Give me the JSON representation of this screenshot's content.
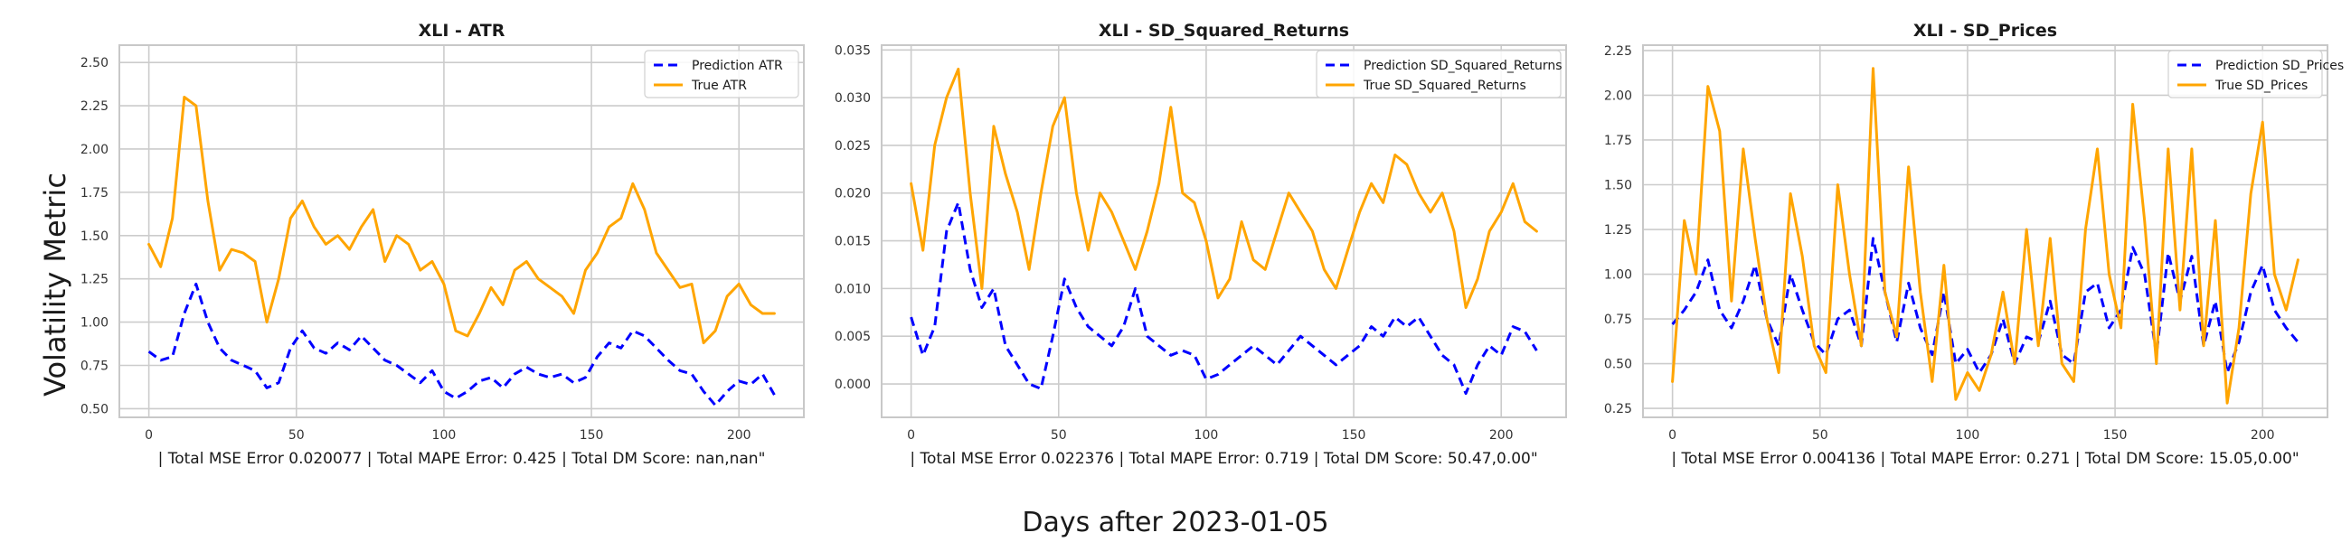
{
  "figure": {
    "ylabel": "Volatility Metric",
    "xlabel": "Days after 2023-01-05"
  },
  "colors": {
    "prediction": "#0000ff",
    "true": "#ffa500",
    "grid": "#cccccc",
    "frame": "#c8c8c8"
  },
  "chart_data": [
    {
      "type": "line",
      "title": "XLI - ATR",
      "xlabel": "| Total MSE Error 0.020077 | Total MAPE Error: 0.425 | Total DM Score: nan,nan\"",
      "ylabel": "",
      "xlim": [
        -10,
        222
      ],
      "ylim": [
        0.45,
        2.6
      ],
      "xticks": [
        0,
        50,
        100,
        150,
        200
      ],
      "yticks": [
        0.5,
        0.75,
        1.0,
        1.25,
        1.5,
        1.75,
        2.0,
        2.25,
        2.5
      ],
      "yticklabels": [
        "0.50",
        "0.75",
        "1.00",
        "1.25",
        "1.50",
        "1.75",
        "2.00",
        "2.25",
        "2.50"
      ],
      "legend": "top-right",
      "series": [
        {
          "name": "Prediction ATR",
          "style": "dashed",
          "color": "#0000ff",
          "x": [
            0,
            4,
            8,
            12,
            16,
            20,
            24,
            28,
            32,
            36,
            40,
            44,
            48,
            52,
            56,
            60,
            64,
            68,
            72,
            76,
            80,
            84,
            88,
            92,
            96,
            100,
            104,
            108,
            112,
            116,
            120,
            124,
            128,
            132,
            136,
            140,
            144,
            148,
            152,
            156,
            160,
            164,
            168,
            172,
            176,
            180,
            184,
            188,
            192,
            196,
            200,
            204,
            208,
            212
          ],
          "y": [
            0.83,
            0.78,
            0.8,
            1.05,
            1.22,
            1.0,
            0.85,
            0.78,
            0.75,
            0.72,
            0.62,
            0.65,
            0.85,
            0.95,
            0.85,
            0.82,
            0.88,
            0.84,
            0.92,
            0.85,
            0.78,
            0.75,
            0.7,
            0.65,
            0.72,
            0.6,
            0.56,
            0.6,
            0.66,
            0.68,
            0.62,
            0.7,
            0.74,
            0.7,
            0.68,
            0.7,
            0.65,
            0.68,
            0.8,
            0.88,
            0.85,
            0.95,
            0.92,
            0.85,
            0.78,
            0.72,
            0.7,
            0.6,
            0.52,
            0.6,
            0.66,
            0.64,
            0.7,
            0.58
          ]
        },
        {
          "name": "True ATR",
          "style": "solid",
          "color": "#ffa500",
          "x": [
            0,
            4,
            8,
            12,
            16,
            20,
            24,
            28,
            32,
            36,
            40,
            44,
            48,
            52,
            56,
            60,
            64,
            68,
            72,
            76,
            80,
            84,
            88,
            92,
            96,
            100,
            104,
            108,
            112,
            116,
            120,
            124,
            128,
            132,
            136,
            140,
            144,
            148,
            152,
            156,
            160,
            164,
            168,
            172,
            176,
            180,
            184,
            188,
            192,
            196,
            200,
            204,
            208,
            212
          ],
          "y": [
            1.45,
            1.32,
            1.6,
            2.3,
            2.25,
            1.7,
            1.3,
            1.42,
            1.4,
            1.35,
            1.0,
            1.25,
            1.6,
            1.7,
            1.55,
            1.45,
            1.5,
            1.42,
            1.55,
            1.65,
            1.35,
            1.5,
            1.45,
            1.3,
            1.35,
            1.22,
            0.95,
            0.92,
            1.05,
            1.2,
            1.1,
            1.3,
            1.35,
            1.25,
            1.2,
            1.15,
            1.05,
            1.3,
            1.4,
            1.55,
            1.6,
            1.8,
            1.65,
            1.4,
            1.3,
            1.2,
            1.22,
            0.88,
            0.95,
            1.15,
            1.22,
            1.1,
            1.05,
            1.05
          ]
        }
      ]
    },
    {
      "type": "line",
      "title": "XLI - SD_Squared_Returns",
      "xlabel": "| Total MSE Error 0.022376 | Total MAPE Error: 0.719 | Total DM Score: 50.47,0.00\"",
      "ylabel": "",
      "xlim": [
        -10,
        222
      ],
      "ylim": [
        -0.0035,
        0.0355
      ],
      "xticks": [
        0,
        50,
        100,
        150,
        200
      ],
      "yticks": [
        0.0,
        0.005,
        0.01,
        0.015,
        0.02,
        0.025,
        0.03,
        0.035
      ],
      "yticklabels": [
        "0.000",
        "0.005",
        "0.010",
        "0.015",
        "0.020",
        "0.025",
        "0.030",
        "0.035"
      ],
      "legend": "top-right",
      "series": [
        {
          "name": "Prediction SD_Squared_Returns",
          "style": "dashed",
          "color": "#0000ff",
          "x": [
            0,
            4,
            8,
            12,
            16,
            20,
            24,
            28,
            32,
            36,
            40,
            44,
            48,
            52,
            56,
            60,
            64,
            68,
            72,
            76,
            80,
            84,
            88,
            92,
            96,
            100,
            104,
            108,
            112,
            116,
            120,
            124,
            128,
            132,
            136,
            140,
            144,
            148,
            152,
            156,
            160,
            164,
            168,
            172,
            176,
            180,
            184,
            188,
            192,
            196,
            200,
            204,
            208,
            212
          ],
          "y": [
            0.007,
            0.003,
            0.006,
            0.016,
            0.019,
            0.012,
            0.008,
            0.01,
            0.004,
            0.002,
            0.0,
            -0.0005,
            0.005,
            0.011,
            0.008,
            0.006,
            0.005,
            0.004,
            0.006,
            0.01,
            0.005,
            0.004,
            0.003,
            0.0035,
            0.003,
            0.0005,
            0.001,
            0.002,
            0.003,
            0.004,
            0.003,
            0.002,
            0.0035,
            0.005,
            0.004,
            0.003,
            0.002,
            0.003,
            0.004,
            0.006,
            0.005,
            0.007,
            0.006,
            0.007,
            0.005,
            0.003,
            0.002,
            -0.001,
            0.002,
            0.004,
            0.003,
            0.006,
            0.0055,
            0.0035
          ]
        },
        {
          "name": "True SD_Squared_Returns",
          "style": "solid",
          "color": "#ffa500",
          "x": [
            0,
            4,
            8,
            12,
            16,
            20,
            24,
            28,
            32,
            36,
            40,
            44,
            48,
            52,
            56,
            60,
            64,
            68,
            72,
            76,
            80,
            84,
            88,
            92,
            96,
            100,
            104,
            108,
            112,
            116,
            120,
            124,
            128,
            132,
            136,
            140,
            144,
            148,
            152,
            156,
            160,
            164,
            168,
            172,
            176,
            180,
            184,
            188,
            192,
            196,
            200,
            204,
            208,
            212
          ],
          "y": [
            0.021,
            0.014,
            0.025,
            0.03,
            0.033,
            0.02,
            0.01,
            0.027,
            0.022,
            0.018,
            0.012,
            0.02,
            0.027,
            0.03,
            0.02,
            0.014,
            0.02,
            0.018,
            0.015,
            0.012,
            0.016,
            0.021,
            0.029,
            0.02,
            0.019,
            0.015,
            0.009,
            0.011,
            0.017,
            0.013,
            0.012,
            0.016,
            0.02,
            0.018,
            0.016,
            0.012,
            0.01,
            0.014,
            0.018,
            0.021,
            0.019,
            0.024,
            0.023,
            0.02,
            0.018,
            0.02,
            0.016,
            0.008,
            0.011,
            0.016,
            0.018,
            0.021,
            0.017,
            0.016
          ]
        }
      ]
    },
    {
      "type": "line",
      "title": "XLI - SD_Prices",
      "xlabel": "| Total MSE Error 0.004136 | Total MAPE Error: 0.271 | Total DM Score: 15.05,0.00\"",
      "ylabel": "",
      "xlim": [
        -10,
        222
      ],
      "ylim": [
        0.2,
        2.28
      ],
      "xticks": [
        0,
        50,
        100,
        150,
        200
      ],
      "yticks": [
        0.25,
        0.5,
        0.75,
        1.0,
        1.25,
        1.5,
        1.75,
        2.0,
        2.25
      ],
      "yticklabels": [
        "0.25",
        "0.50",
        "0.75",
        "1.00",
        "1.25",
        "1.50",
        "1.75",
        "2.00",
        "2.25"
      ],
      "legend": "top-right",
      "series": [
        {
          "name": "Prediction SD_Prices",
          "style": "dashed",
          "color": "#0000ff",
          "x": [
            0,
            4,
            8,
            12,
            16,
            20,
            24,
            28,
            32,
            36,
            40,
            44,
            48,
            52,
            56,
            60,
            64,
            68,
            72,
            76,
            80,
            84,
            88,
            92,
            96,
            100,
            104,
            108,
            112,
            116,
            120,
            124,
            128,
            132,
            136,
            140,
            144,
            148,
            152,
            156,
            160,
            164,
            168,
            172,
            176,
            180,
            184,
            188,
            192,
            196,
            200,
            204,
            208,
            212
          ],
          "y": [
            0.72,
            0.8,
            0.9,
            1.08,
            0.8,
            0.7,
            0.85,
            1.05,
            0.75,
            0.6,
            1.0,
            0.8,
            0.62,
            0.55,
            0.75,
            0.8,
            0.6,
            1.2,
            0.9,
            0.62,
            0.95,
            0.7,
            0.55,
            0.9,
            0.5,
            0.58,
            0.45,
            0.55,
            0.75,
            0.5,
            0.65,
            0.62,
            0.85,
            0.55,
            0.5,
            0.9,
            0.95,
            0.7,
            0.8,
            1.15,
            1.0,
            0.55,
            1.12,
            0.85,
            1.1,
            0.6,
            0.85,
            0.45,
            0.62,
            0.9,
            1.05,
            0.8,
            0.7,
            0.62
          ]
        },
        {
          "name": "True SD_Prices",
          "style": "solid",
          "color": "#ffa500",
          "x": [
            0,
            4,
            8,
            12,
            16,
            20,
            24,
            28,
            32,
            36,
            40,
            44,
            48,
            52,
            56,
            60,
            64,
            68,
            72,
            76,
            80,
            84,
            88,
            92,
            96,
            100,
            104,
            108,
            112,
            116,
            120,
            124,
            128,
            132,
            136,
            140,
            144,
            148,
            152,
            156,
            160,
            164,
            168,
            172,
            176,
            180,
            184,
            188,
            192,
            196,
            200,
            204,
            208,
            212
          ],
          "y": [
            0.4,
            1.3,
            1.0,
            2.05,
            1.8,
            0.85,
            1.7,
            1.2,
            0.75,
            0.45,
            1.45,
            1.1,
            0.6,
            0.45,
            1.5,
            1.0,
            0.6,
            2.15,
            0.9,
            0.65,
            1.6,
            0.9,
            0.4,
            1.05,
            0.3,
            0.45,
            0.35,
            0.55,
            0.9,
            0.5,
            1.25,
            0.6,
            1.2,
            0.5,
            0.4,
            1.25,
            1.7,
            1.0,
            0.7,
            1.95,
            1.3,
            0.5,
            1.7,
            0.8,
            1.7,
            0.6,
            1.3,
            0.28,
            0.7,
            1.45,
            1.85,
            1.0,
            0.8,
            1.08
          ]
        }
      ]
    }
  ]
}
